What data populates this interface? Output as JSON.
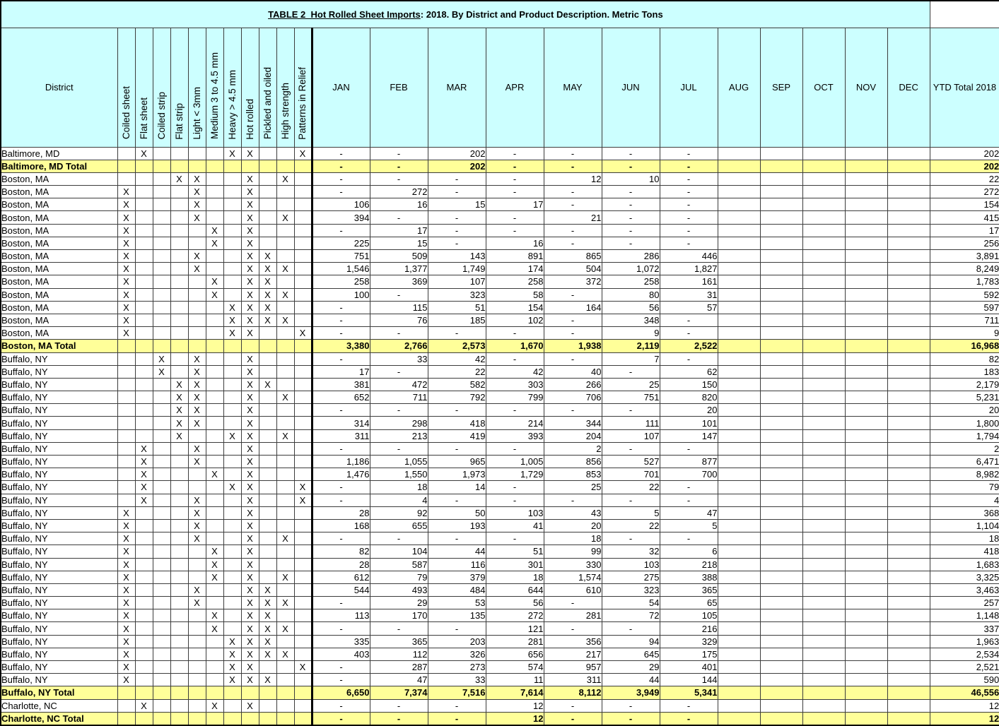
{
  "title": {
    "underlined": "TABLE 2  Hot Rolled Sheet Imports",
    "rest": ": 2018. By District and Product Description. Metric Tons"
  },
  "colors": {
    "header_bg": "#CCFFFF",
    "total_row_bg": "#FFFF99",
    "grid": "#3C3C3C",
    "outer_border": "#000000"
  },
  "header": {
    "district_label": "District",
    "product_columns": [
      "Coiled sheet",
      "Flat sheet",
      "Coiled strip",
      "Flat strip",
      "Light < 3mm",
      "Medium 3 to 4.5 mm",
      "Heavy > 4.5 mm",
      "Hot rolled",
      "Pickled and oiled",
      "High strength",
      "Patterns in Relief"
    ],
    "month_columns": [
      "JAN",
      "FEB",
      "MAR",
      "APR",
      "MAY",
      "JUN",
      "JUL",
      "AUG",
      "SEP",
      "OCT",
      "NOV",
      "DEC"
    ],
    "ytd_label": "YTD\nTotal\n2018"
  },
  "rows": [
    {
      "district": "Baltimore, MD",
      "total": false,
      "x": [
        2,
        7,
        8,
        11
      ],
      "m": [
        "-",
        "-",
        "202",
        "-",
        "-",
        "-",
        "-",
        "",
        "",
        "",
        "",
        ""
      ],
      "ytd": "202"
    },
    {
      "district": "Baltimore, MD Total",
      "total": true,
      "x": [],
      "m": [
        "-",
        "-",
        "202",
        "-",
        "-",
        "-",
        "-",
        "",
        "",
        "",
        "",
        ""
      ],
      "ytd": "202"
    },
    {
      "district": "Boston, MA",
      "total": false,
      "x": [
        4,
        5,
        8,
        10
      ],
      "m": [
        "-",
        "-",
        "-",
        "-",
        "12",
        "10",
        "-",
        "",
        "",
        "",
        "",
        ""
      ],
      "ytd": "22"
    },
    {
      "district": "Boston, MA",
      "total": false,
      "x": [
        1,
        5,
        8
      ],
      "m": [
        "-",
        "272",
        "-",
        "-",
        "-",
        "-",
        "-",
        "",
        "",
        "",
        "",
        ""
      ],
      "ytd": "272"
    },
    {
      "district": "Boston, MA",
      "total": false,
      "x": [
        1,
        5,
        8
      ],
      "m": [
        "106",
        "16",
        "15",
        "17",
        "-",
        "-",
        "-",
        "",
        "",
        "",
        "",
        ""
      ],
      "ytd": "154"
    },
    {
      "district": "Boston, MA",
      "total": false,
      "x": [
        1,
        5,
        8,
        10
      ],
      "m": [
        "394",
        "-",
        "-",
        "-",
        "21",
        "-",
        "-",
        "",
        "",
        "",
        "",
        ""
      ],
      "ytd": "415"
    },
    {
      "district": "Boston, MA",
      "total": false,
      "x": [
        1,
        6,
        8
      ],
      "m": [
        "-",
        "17",
        "-",
        "-",
        "-",
        "-",
        "-",
        "",
        "",
        "",
        "",
        ""
      ],
      "ytd": "17"
    },
    {
      "district": "Boston, MA",
      "total": false,
      "x": [
        1,
        6,
        8
      ],
      "m": [
        "225",
        "15",
        "-",
        "16",
        "-",
        "-",
        "-",
        "",
        "",
        "",
        "",
        ""
      ],
      "ytd": "256"
    },
    {
      "district": "Boston, MA",
      "total": false,
      "x": [
        1,
        5,
        8,
        9
      ],
      "m": [
        "751",
        "509",
        "143",
        "891",
        "865",
        "286",
        "446",
        "",
        "",
        "",
        "",
        ""
      ],
      "ytd": "3,891"
    },
    {
      "district": "Boston, MA",
      "total": false,
      "x": [
        1,
        5,
        8,
        9,
        10
      ],
      "m": [
        "1,546",
        "1,377",
        "1,749",
        "174",
        "504",
        "1,072",
        "1,827",
        "",
        "",
        "",
        "",
        ""
      ],
      "ytd": "8,249"
    },
    {
      "district": "Boston, MA",
      "total": false,
      "x": [
        1,
        6,
        8,
        9
      ],
      "m": [
        "258",
        "369",
        "107",
        "258",
        "372",
        "258",
        "161",
        "",
        "",
        "",
        "",
        ""
      ],
      "ytd": "1,783"
    },
    {
      "district": "Boston, MA",
      "total": false,
      "x": [
        1,
        6,
        8,
        9,
        10
      ],
      "m": [
        "100",
        "-",
        "323",
        "58",
        "-",
        "80",
        "31",
        "",
        "",
        "",
        "",
        ""
      ],
      "ytd": "592"
    },
    {
      "district": "Boston, MA",
      "total": false,
      "x": [
        1,
        7,
        8,
        9
      ],
      "m": [
        "-",
        "115",
        "51",
        "154",
        "164",
        "56",
        "57",
        "",
        "",
        "",
        "",
        ""
      ],
      "ytd": "597"
    },
    {
      "district": "Boston, MA",
      "total": false,
      "x": [
        1,
        7,
        8,
        9,
        10
      ],
      "m": [
        "-",
        "76",
        "185",
        "102",
        "-",
        "348",
        "-",
        "",
        "",
        "",
        "",
        ""
      ],
      "ytd": "711"
    },
    {
      "district": "Boston, MA",
      "total": false,
      "x": [
        1,
        7,
        8,
        11
      ],
      "m": [
        "-",
        "-",
        "-",
        "-",
        "-",
        "9",
        "-",
        "",
        "",
        "",
        "",
        ""
      ],
      "ytd": "9"
    },
    {
      "district": "Boston, MA Total",
      "total": true,
      "x": [],
      "m": [
        "3,380",
        "2,766",
        "2,573",
        "1,670",
        "1,938",
        "2,119",
        "2,522",
        "",
        "",
        "",
        "",
        ""
      ],
      "ytd": "16,968"
    },
    {
      "district": "Buffalo, NY",
      "total": false,
      "x": [
        3,
        5,
        8
      ],
      "m": [
        "-",
        "33",
        "42",
        "-",
        "-",
        "7",
        "-",
        "",
        "",
        "",
        "",
        ""
      ],
      "ytd": "82"
    },
    {
      "district": "Buffalo, NY",
      "total": false,
      "x": [
        3,
        5,
        8
      ],
      "m": [
        "17",
        "-",
        "22",
        "42",
        "40",
        "-",
        "62",
        "",
        "",
        "",
        "",
        ""
      ],
      "ytd": "183"
    },
    {
      "district": "Buffalo, NY",
      "total": false,
      "x": [
        4,
        5,
        8,
        9
      ],
      "m": [
        "381",
        "472",
        "582",
        "303",
        "266",
        "25",
        "150",
        "",
        "",
        "",
        "",
        ""
      ],
      "ytd": "2,179"
    },
    {
      "district": "Buffalo, NY",
      "total": false,
      "x": [
        4,
        5,
        8,
        10
      ],
      "m": [
        "652",
        "711",
        "792",
        "799",
        "706",
        "751",
        "820",
        "",
        "",
        "",
        "",
        ""
      ],
      "ytd": "5,231"
    },
    {
      "district": "Buffalo, NY",
      "total": false,
      "x": [
        4,
        5,
        8
      ],
      "m": [
        "-",
        "-",
        "-",
        "-",
        "-",
        "-",
        "20",
        "",
        "",
        "",
        "",
        ""
      ],
      "ytd": "20"
    },
    {
      "district": "Buffalo, NY",
      "total": false,
      "x": [
        4,
        5,
        8
      ],
      "m": [
        "314",
        "298",
        "418",
        "214",
        "344",
        "111",
        "101",
        "",
        "",
        "",
        "",
        ""
      ],
      "ytd": "1,800"
    },
    {
      "district": "Buffalo, NY",
      "total": false,
      "x": [
        4,
        7,
        8,
        10
      ],
      "m": [
        "311",
        "213",
        "419",
        "393",
        "204",
        "107",
        "147",
        "",
        "",
        "",
        "",
        ""
      ],
      "ytd": "1,794"
    },
    {
      "district": "Buffalo, NY",
      "total": false,
      "x": [
        2,
        5,
        8
      ],
      "m": [
        "-",
        "-",
        "-",
        "-",
        "2",
        "-",
        "-",
        "",
        "",
        "",
        "",
        ""
      ],
      "ytd": "2"
    },
    {
      "district": "Buffalo, NY",
      "total": false,
      "x": [
        2,
        5,
        8
      ],
      "m": [
        "1,186",
        "1,055",
        "965",
        "1,005",
        "856",
        "527",
        "877",
        "",
        "",
        "",
        "",
        ""
      ],
      "ytd": "6,471"
    },
    {
      "district": "Buffalo, NY",
      "total": false,
      "x": [
        2,
        6,
        8
      ],
      "m": [
        "1,476",
        "1,550",
        "1,973",
        "1,729",
        "853",
        "701",
        "700",
        "",
        "",
        "",
        "",
        ""
      ],
      "ytd": "8,982"
    },
    {
      "district": "Buffalo, NY",
      "total": false,
      "x": [
        2,
        7,
        8,
        11
      ],
      "m": [
        "-",
        "18",
        "14",
        "-",
        "25",
        "22",
        "-",
        "",
        "",
        "",
        "",
        ""
      ],
      "ytd": "79"
    },
    {
      "district": "Buffalo, NY",
      "total": false,
      "x": [
        2,
        5,
        8,
        11
      ],
      "m": [
        "-",
        "4",
        "-",
        "-",
        "-",
        "-",
        "-",
        "",
        "",
        "",
        "",
        ""
      ],
      "ytd": "4"
    },
    {
      "district": "Buffalo, NY",
      "total": false,
      "x": [
        1,
        5,
        8
      ],
      "m": [
        "28",
        "92",
        "50",
        "103",
        "43",
        "5",
        "47",
        "",
        "",
        "",
        "",
        ""
      ],
      "ytd": "368"
    },
    {
      "district": "Buffalo, NY",
      "total": false,
      "x": [
        1,
        5,
        8
      ],
      "m": [
        "168",
        "655",
        "193",
        "41",
        "20",
        "22",
        "5",
        "",
        "",
        "",
        "",
        ""
      ],
      "ytd": "1,104"
    },
    {
      "district": "Buffalo, NY",
      "total": false,
      "x": [
        1,
        5,
        8,
        10
      ],
      "m": [
        "-",
        "-",
        "-",
        "-",
        "18",
        "-",
        "-",
        "",
        "",
        "",
        "",
        ""
      ],
      "ytd": "18"
    },
    {
      "district": "Buffalo, NY",
      "total": false,
      "x": [
        1,
        6,
        8
      ],
      "m": [
        "82",
        "104",
        "44",
        "51",
        "99",
        "32",
        "6",
        "",
        "",
        "",
        "",
        ""
      ],
      "ytd": "418"
    },
    {
      "district": "Buffalo, NY",
      "total": false,
      "x": [
        1,
        6,
        8
      ],
      "m": [
        "28",
        "587",
        "116",
        "301",
        "330",
        "103",
        "218",
        "",
        "",
        "",
        "",
        ""
      ],
      "ytd": "1,683"
    },
    {
      "district": "Buffalo, NY",
      "total": false,
      "x": [
        1,
        6,
        8,
        10
      ],
      "m": [
        "612",
        "79",
        "379",
        "18",
        "1,574",
        "275",
        "388",
        "",
        "",
        "",
        "",
        ""
      ],
      "ytd": "3,325"
    },
    {
      "district": "Buffalo, NY",
      "total": false,
      "x": [
        1,
        5,
        8,
        9
      ],
      "m": [
        "544",
        "493",
        "484",
        "644",
        "610",
        "323",
        "365",
        "",
        "",
        "",
        "",
        ""
      ],
      "ytd": "3,463"
    },
    {
      "district": "Buffalo, NY",
      "total": false,
      "x": [
        1,
        5,
        8,
        9,
        10
      ],
      "m": [
        "-",
        "29",
        "53",
        "56",
        "-",
        "54",
        "65",
        "",
        "",
        "",
        "",
        ""
      ],
      "ytd": "257"
    },
    {
      "district": "Buffalo, NY",
      "total": false,
      "x": [
        1,
        6,
        8,
        9
      ],
      "m": [
        "113",
        "170",
        "135",
        "272",
        "281",
        "72",
        "105",
        "",
        "",
        "",
        "",
        ""
      ],
      "ytd": "1,148"
    },
    {
      "district": "Buffalo, NY",
      "total": false,
      "x": [
        1,
        6,
        8,
        9,
        10
      ],
      "m": [
        "-",
        "-",
        "-",
        "121",
        "-",
        "-",
        "216",
        "",
        "",
        "",
        "",
        ""
      ],
      "ytd": "337"
    },
    {
      "district": "Buffalo, NY",
      "total": false,
      "x": [
        1,
        7,
        8,
        9
      ],
      "m": [
        "335",
        "365",
        "203",
        "281",
        "356",
        "94",
        "329",
        "",
        "",
        "",
        "",
        ""
      ],
      "ytd": "1,963"
    },
    {
      "district": "Buffalo, NY",
      "total": false,
      "x": [
        1,
        7,
        8,
        9,
        10
      ],
      "m": [
        "403",
        "112",
        "326",
        "656",
        "217",
        "645",
        "175",
        "",
        "",
        "",
        "",
        ""
      ],
      "ytd": "2,534"
    },
    {
      "district": "Buffalo, NY",
      "total": false,
      "x": [
        1,
        7,
        8,
        11
      ],
      "m": [
        "-",
        "287",
        "273",
        "574",
        "957",
        "29",
        "401",
        "",
        "",
        "",
        "",
        ""
      ],
      "ytd": "2,521"
    },
    {
      "district": "Buffalo, NY",
      "total": false,
      "x": [
        1,
        7,
        8,
        9
      ],
      "m": [
        "-",
        "47",
        "33",
        "11",
        "311",
        "44",
        "144",
        "",
        "",
        "",
        "",
        ""
      ],
      "ytd": "590"
    },
    {
      "district": "Buffalo, NY Total",
      "total": true,
      "x": [],
      "m": [
        "6,650",
        "7,374",
        "7,516",
        "7,614",
        "8,112",
        "3,949",
        "5,341",
        "",
        "",
        "",
        "",
        ""
      ],
      "ytd": "46,556"
    },
    {
      "district": "Charlotte, NC",
      "total": false,
      "x": [
        2,
        6,
        8
      ],
      "m": [
        "-",
        "-",
        "-",
        "12",
        "-",
        "-",
        "-",
        "",
        "",
        "",
        "",
        ""
      ],
      "ytd": "12"
    },
    {
      "district": "Charlotte, NC Total",
      "total": true,
      "x": [],
      "m": [
        "-",
        "-",
        "-",
        "12",
        "-",
        "-",
        "-",
        "",
        "",
        "",
        "",
        ""
      ],
      "ytd": "12"
    }
  ]
}
